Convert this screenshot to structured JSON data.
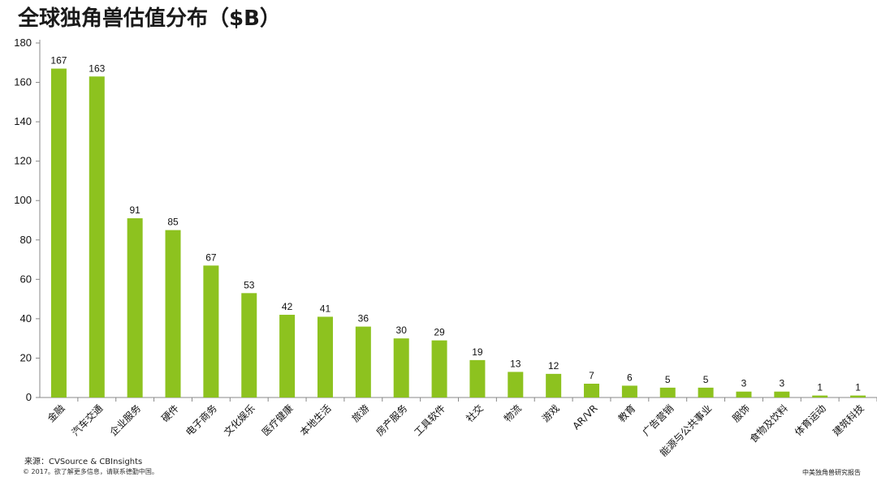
{
  "title": "全球独角兽估值分布（$B）",
  "source": "来源：CVSource & CBInsights",
  "copyright": "© 2017。欲了解更多信息，请联系德勤中国。",
  "brand": "中美独角兽研究报告",
  "colors": {
    "bar": "#8dc21f",
    "axis": "#888888"
  },
  "chart_data": {
    "type": "bar",
    "categories": [
      "金融",
      "汽车交通",
      "企业服务",
      "硬件",
      "电子商务",
      "文化娱乐",
      "医疗健康",
      "本地生活",
      "旅游",
      "房产服务",
      "工具软件",
      "社交",
      "物流",
      "游戏",
      "AR/VR",
      "教育",
      "广告营销",
      "能源与公共事业",
      "服饰",
      "食物及饮料",
      "体育运动",
      "建筑科技"
    ],
    "values": [
      167,
      163,
      91,
      85,
      67,
      53,
      42,
      41,
      36,
      30,
      29,
      19,
      13,
      12,
      7,
      6,
      5,
      5,
      3,
      3,
      1,
      1
    ],
    "ylim": [
      0,
      180
    ],
    "yticks": [
      0,
      20,
      40,
      60,
      80,
      100,
      120,
      140,
      160,
      180
    ],
    "title": "全球独角兽估值分布（$B）",
    "xlabel": "",
    "ylabel": "",
    "grid": false,
    "legend": "none"
  }
}
